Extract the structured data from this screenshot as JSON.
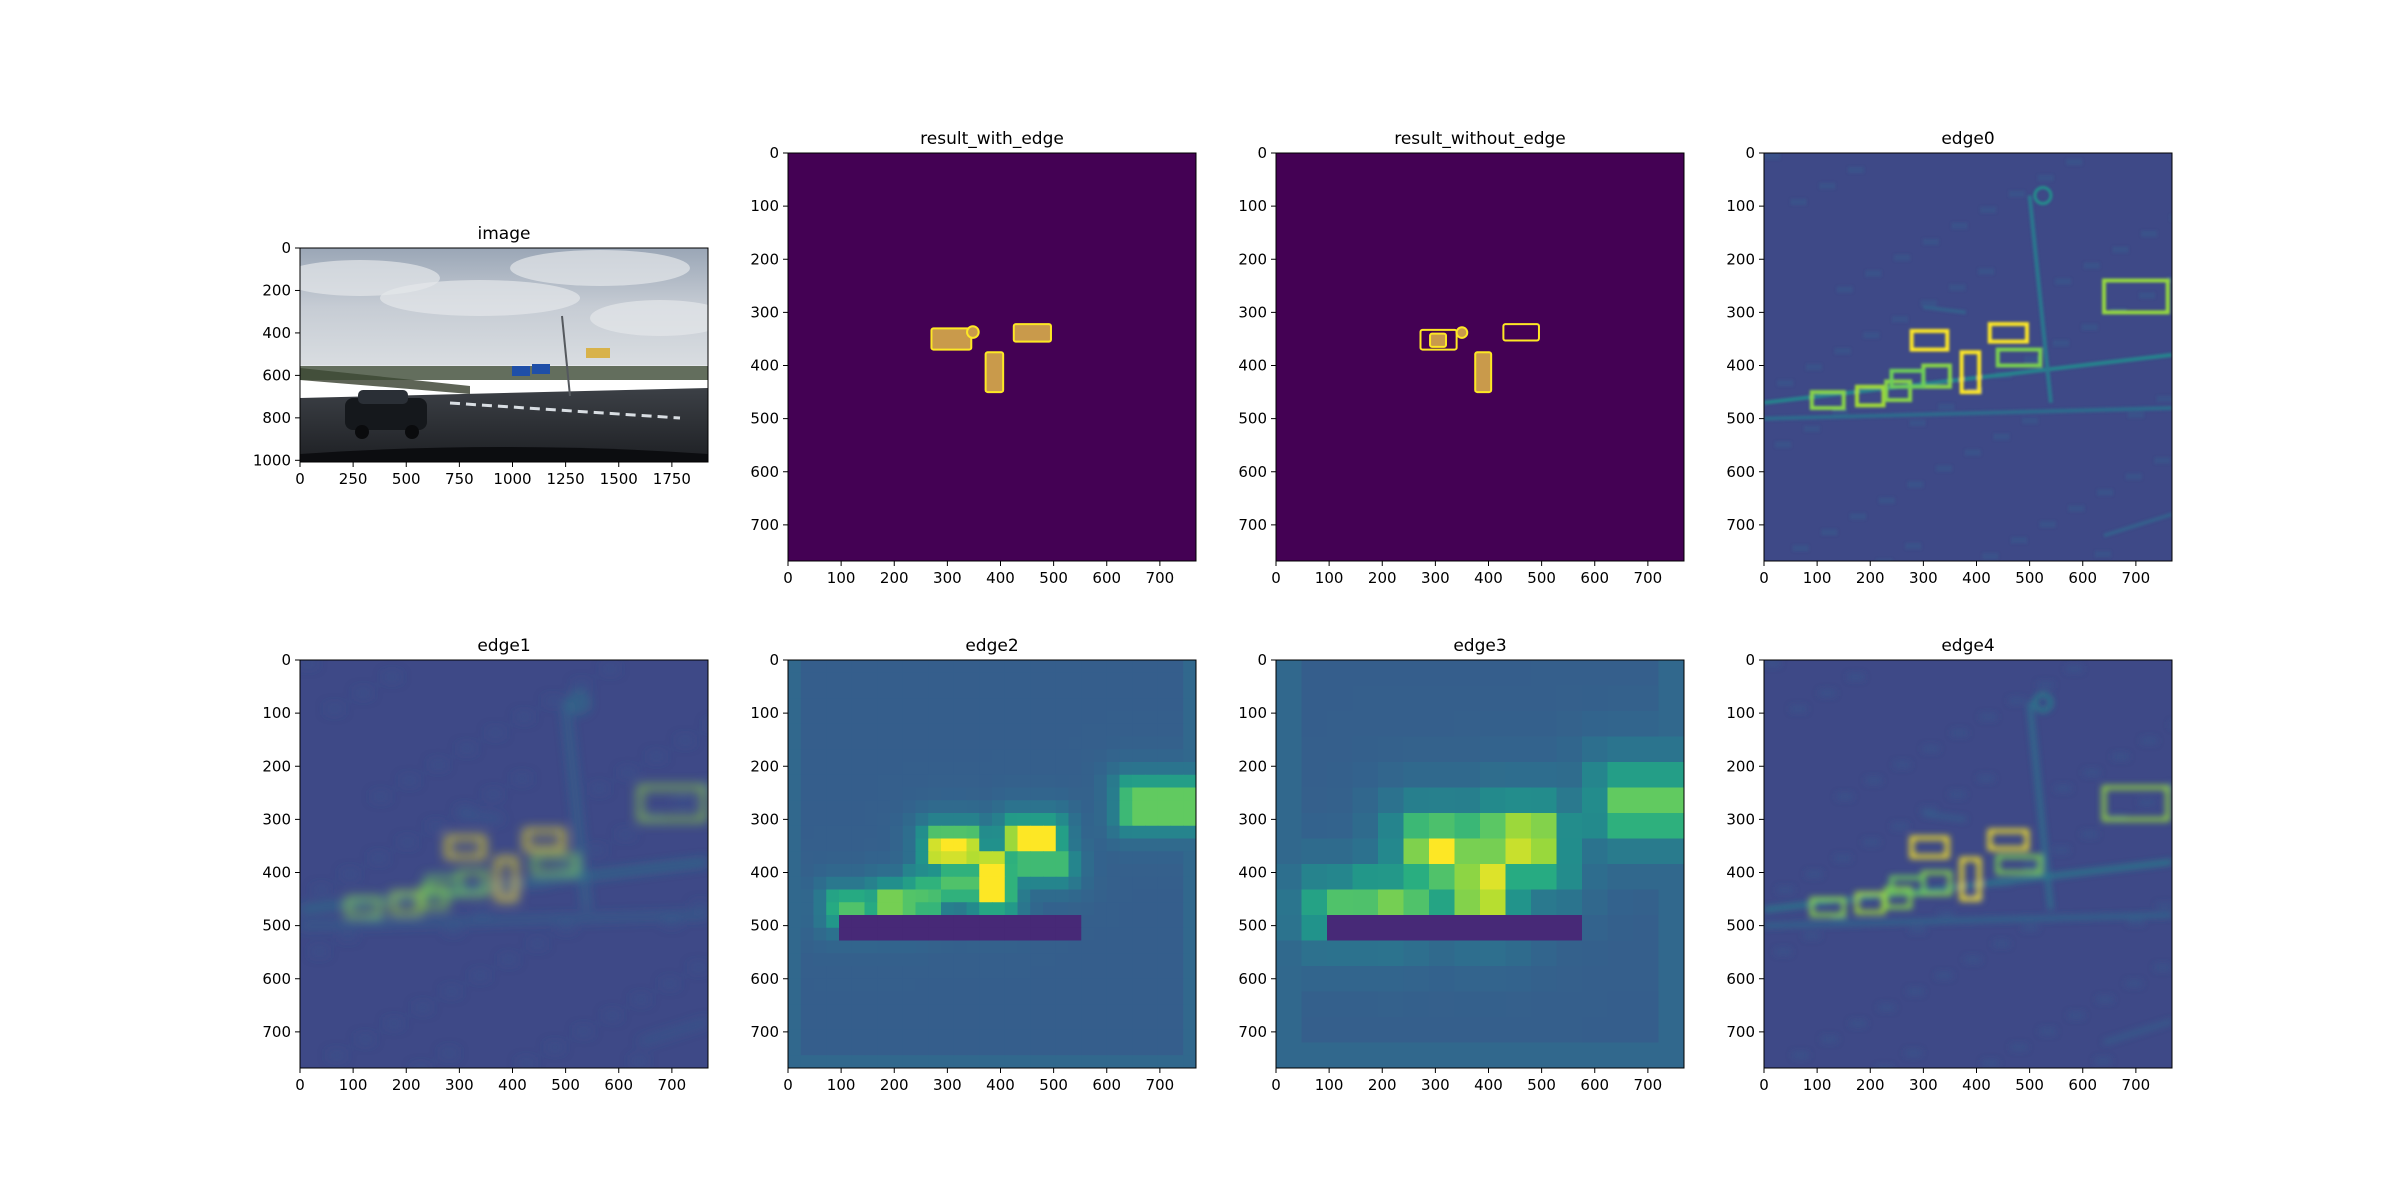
{
  "figure": {
    "background": "#ffffff"
  },
  "colors": {
    "viridis_bg": "#440154",
    "viridis_low": "#3b528b",
    "viridis_mid": "#21918c",
    "viridis_high": "#5ec962",
    "viridis_top": "#fde725",
    "overlay_fill": "#c99a4b",
    "overlay_edge": "#fde725"
  },
  "chart_data": [
    {
      "type": "heatmap",
      "title": "image",
      "content": "photo",
      "xlim": [
        0,
        1920
      ],
      "ylim": [
        1008,
        0
      ],
      "xticks": [
        0,
        250,
        500,
        750,
        1000,
        1250,
        1500,
        1750
      ],
      "yticks": [
        0,
        200,
        400,
        600,
        800,
        1000
      ]
    },
    {
      "type": "heatmap",
      "title": "result_with_edge",
      "content": "mask_filled",
      "xlim": [
        0,
        768
      ],
      "ylim": [
        768,
        0
      ],
      "xticks": [
        0,
        100,
        200,
        300,
        400,
        500,
        600,
        700
      ],
      "yticks": [
        0,
        100,
        200,
        300,
        400,
        500,
        600,
        700
      ],
      "regions": [
        {
          "shape": "rect",
          "x": [
            270,
            345
          ],
          "y": [
            330,
            370
          ]
        },
        {
          "shape": "circle",
          "cx": 348,
          "cy": 337,
          "r": 11
        },
        {
          "shape": "rect",
          "x": [
            425,
            495
          ],
          "y": [
            322,
            355
          ]
        },
        {
          "shape": "rect",
          "x": [
            372,
            405
          ],
          "y": [
            375,
            450
          ]
        }
      ]
    },
    {
      "type": "heatmap",
      "title": "result_without_edge",
      "content": "mask_outline",
      "xlim": [
        0,
        768
      ],
      "ylim": [
        768,
        0
      ],
      "xticks": [
        0,
        100,
        200,
        300,
        400,
        500,
        600,
        700
      ],
      "yticks": [
        0,
        100,
        200,
        300,
        400,
        500,
        600,
        700
      ],
      "regions": [
        {
          "shape": "rect",
          "x": [
            272,
            340
          ],
          "y": [
            333,
            370
          ],
          "style": "outline"
        },
        {
          "shape": "circle",
          "cx": 350,
          "cy": 338,
          "r": 10,
          "style": "filled"
        },
        {
          "shape": "rect",
          "x": [
            290,
            320
          ],
          "y": [
            340,
            365
          ],
          "style": "filled"
        },
        {
          "shape": "rect",
          "x": [
            428,
            495
          ],
          "y": [
            322,
            353
          ],
          "style": "outline"
        },
        {
          "shape": "rect",
          "x": [
            375,
            405
          ],
          "y": [
            375,
            450
          ],
          "style": "filled"
        }
      ]
    },
    {
      "type": "heatmap",
      "title": "edge0",
      "content": "edge_map",
      "blur": 0.6,
      "xlim": [
        0,
        768
      ],
      "ylim": [
        768,
        0
      ],
      "xticks": [
        0,
        100,
        200,
        300,
        400,
        500,
        600,
        700
      ],
      "yticks": [
        0,
        100,
        200,
        300,
        400,
        500,
        600,
        700
      ]
    },
    {
      "type": "heatmap",
      "title": "edge1",
      "content": "edge_map",
      "blur": 2.5,
      "xlim": [
        0,
        768
      ],
      "ylim": [
        768,
        0
      ],
      "xticks": [
        0,
        100,
        200,
        300,
        400,
        500,
        600,
        700
      ],
      "yticks": [
        0,
        100,
        200,
        300,
        400,
        500,
        600,
        700
      ]
    },
    {
      "type": "heatmap",
      "title": "edge2",
      "content": "edge_map_blocky",
      "block": 24,
      "xlim": [
        0,
        768
      ],
      "ylim": [
        768,
        0
      ],
      "xticks": [
        0,
        100,
        200,
        300,
        400,
        500,
        600,
        700
      ],
      "yticks": [
        0,
        100,
        200,
        300,
        400,
        500,
        600,
        700
      ]
    },
    {
      "type": "heatmap",
      "title": "edge3",
      "content": "edge_map_blocky",
      "block": 48,
      "xlim": [
        0,
        768
      ],
      "ylim": [
        768,
        0
      ],
      "xticks": [
        0,
        100,
        200,
        300,
        400,
        500,
        600,
        700
      ],
      "yticks": [
        0,
        100,
        200,
        300,
        400,
        500,
        600,
        700
      ]
    },
    {
      "type": "heatmap",
      "title": "edge4",
      "content": "edge_map",
      "blur": 1.5,
      "xlim": [
        0,
        768
      ],
      "ylim": [
        768,
        0
      ],
      "xticks": [
        0,
        100,
        200,
        300,
        400,
        500,
        600,
        700
      ],
      "yticks": [
        0,
        100,
        200,
        300,
        400,
        500,
        600,
        700
      ]
    }
  ]
}
